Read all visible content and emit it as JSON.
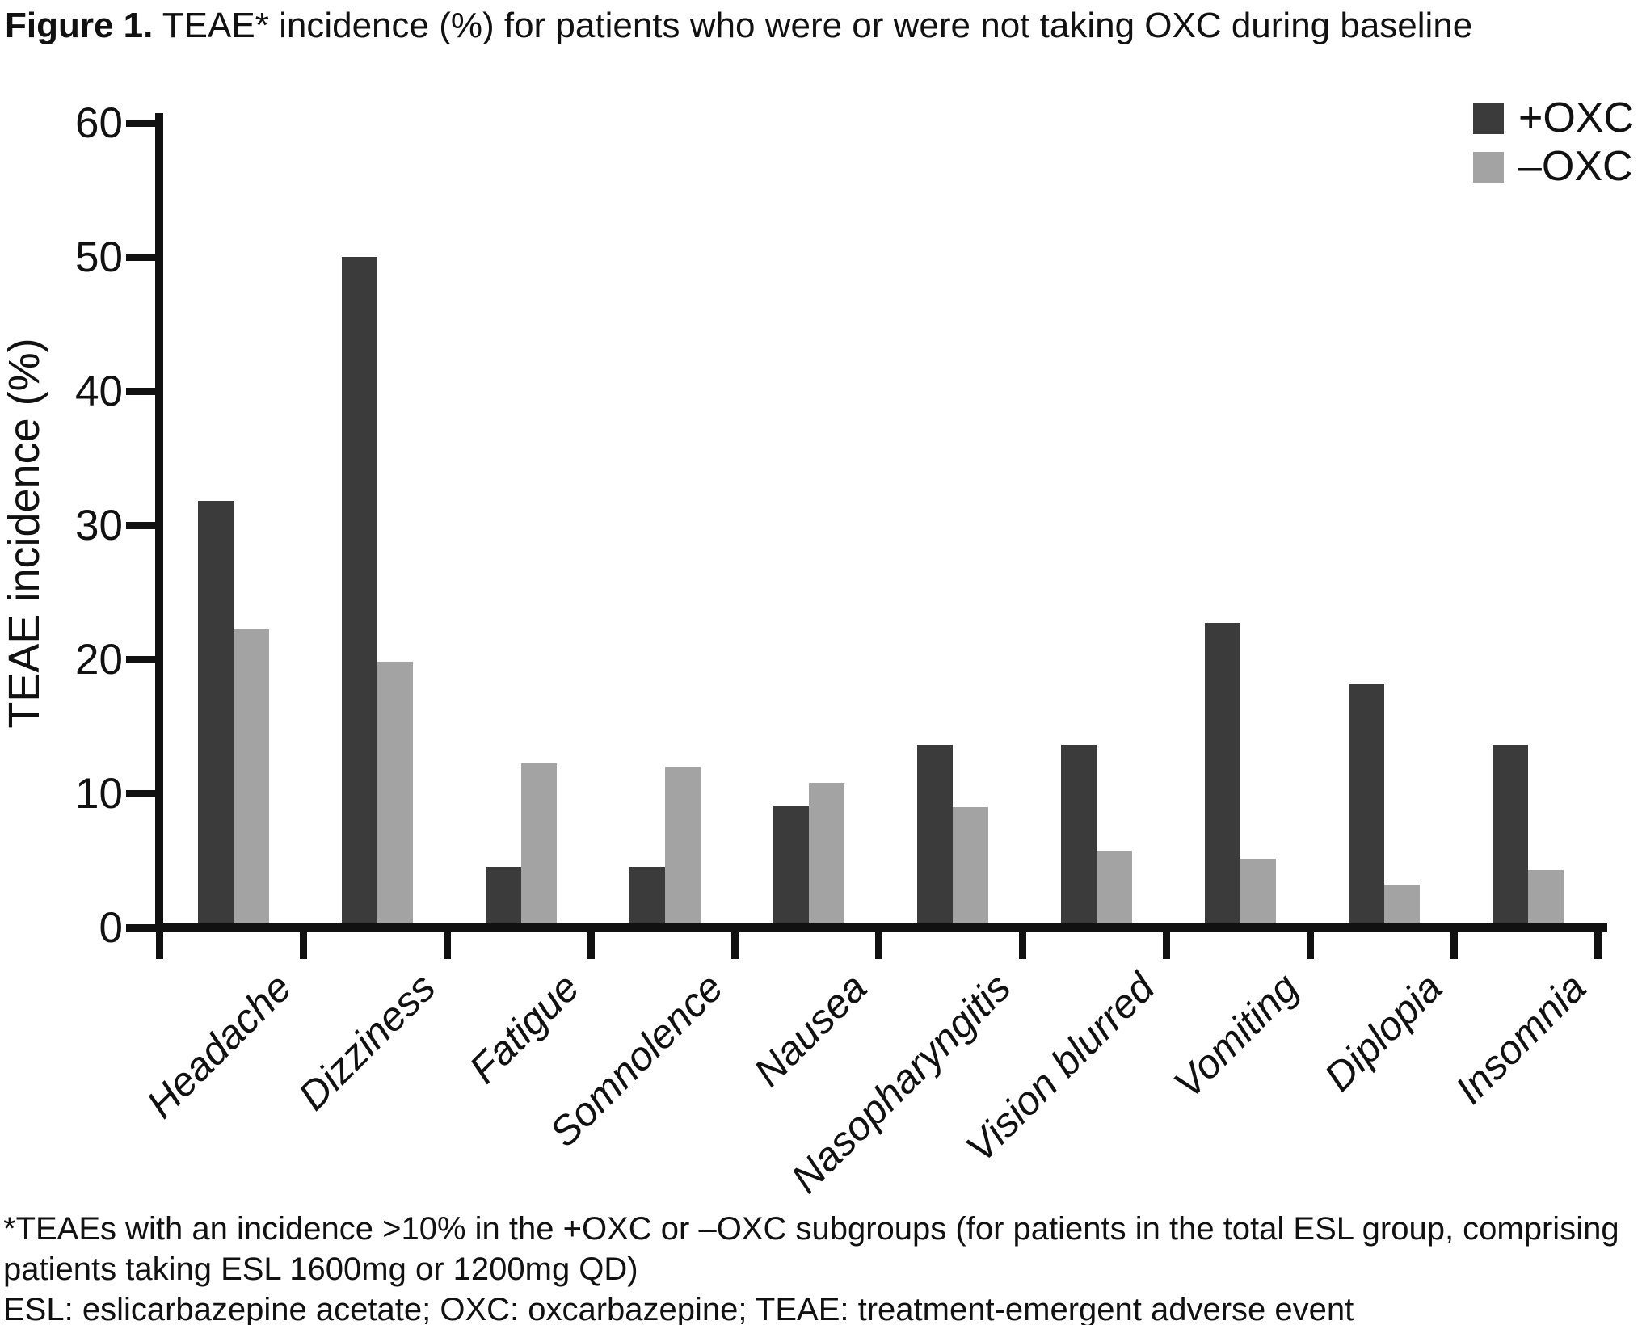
{
  "title": {
    "prefix": "Figure 1.",
    "rest": " TEAE* incidence (%) for patients who were or were not taking OXC during baseline"
  },
  "chart_data": {
    "type": "bar",
    "categories": [
      "Headache",
      "Dizziness",
      "Fatigue",
      "Somnolence",
      "Nausea",
      "Nasopharyngitis",
      "Vision blurred",
      "Vomiting",
      "Diplopia",
      "Insomnia"
    ],
    "series": [
      {
        "name": "+OXC",
        "color": "#3b3b3b",
        "values": [
          31.8,
          50.0,
          4.5,
          4.5,
          9.1,
          13.6,
          13.6,
          22.7,
          18.2,
          13.6
        ]
      },
      {
        "name": "–OXC",
        "color": "#a3a3a3",
        "values": [
          22.2,
          19.8,
          12.2,
          12.0,
          10.8,
          9.0,
          5.7,
          5.1,
          3.2,
          4.3
        ]
      }
    ],
    "title": "",
    "xlabel": "",
    "ylabel": "TEAE incidence (%)",
    "ylim": [
      0,
      60
    ],
    "ytick_step": 10,
    "yticks": [
      0,
      10,
      20,
      30,
      40,
      50,
      60
    ],
    "grid": false,
    "legend_position": "top-right",
    "axis_color": "#111111"
  },
  "footnotes": {
    "line1": "*TEAEs with an incidence >10% in the +OXC or –OXC subgroups (for patients in the total ESL group, comprising patients taking ESL 1600mg or 1200mg QD)",
    "line2": "ESL: eslicarbazepine acetate; OXC: oxcarbazepine; TEAE: treatment-emergent adverse event"
  }
}
